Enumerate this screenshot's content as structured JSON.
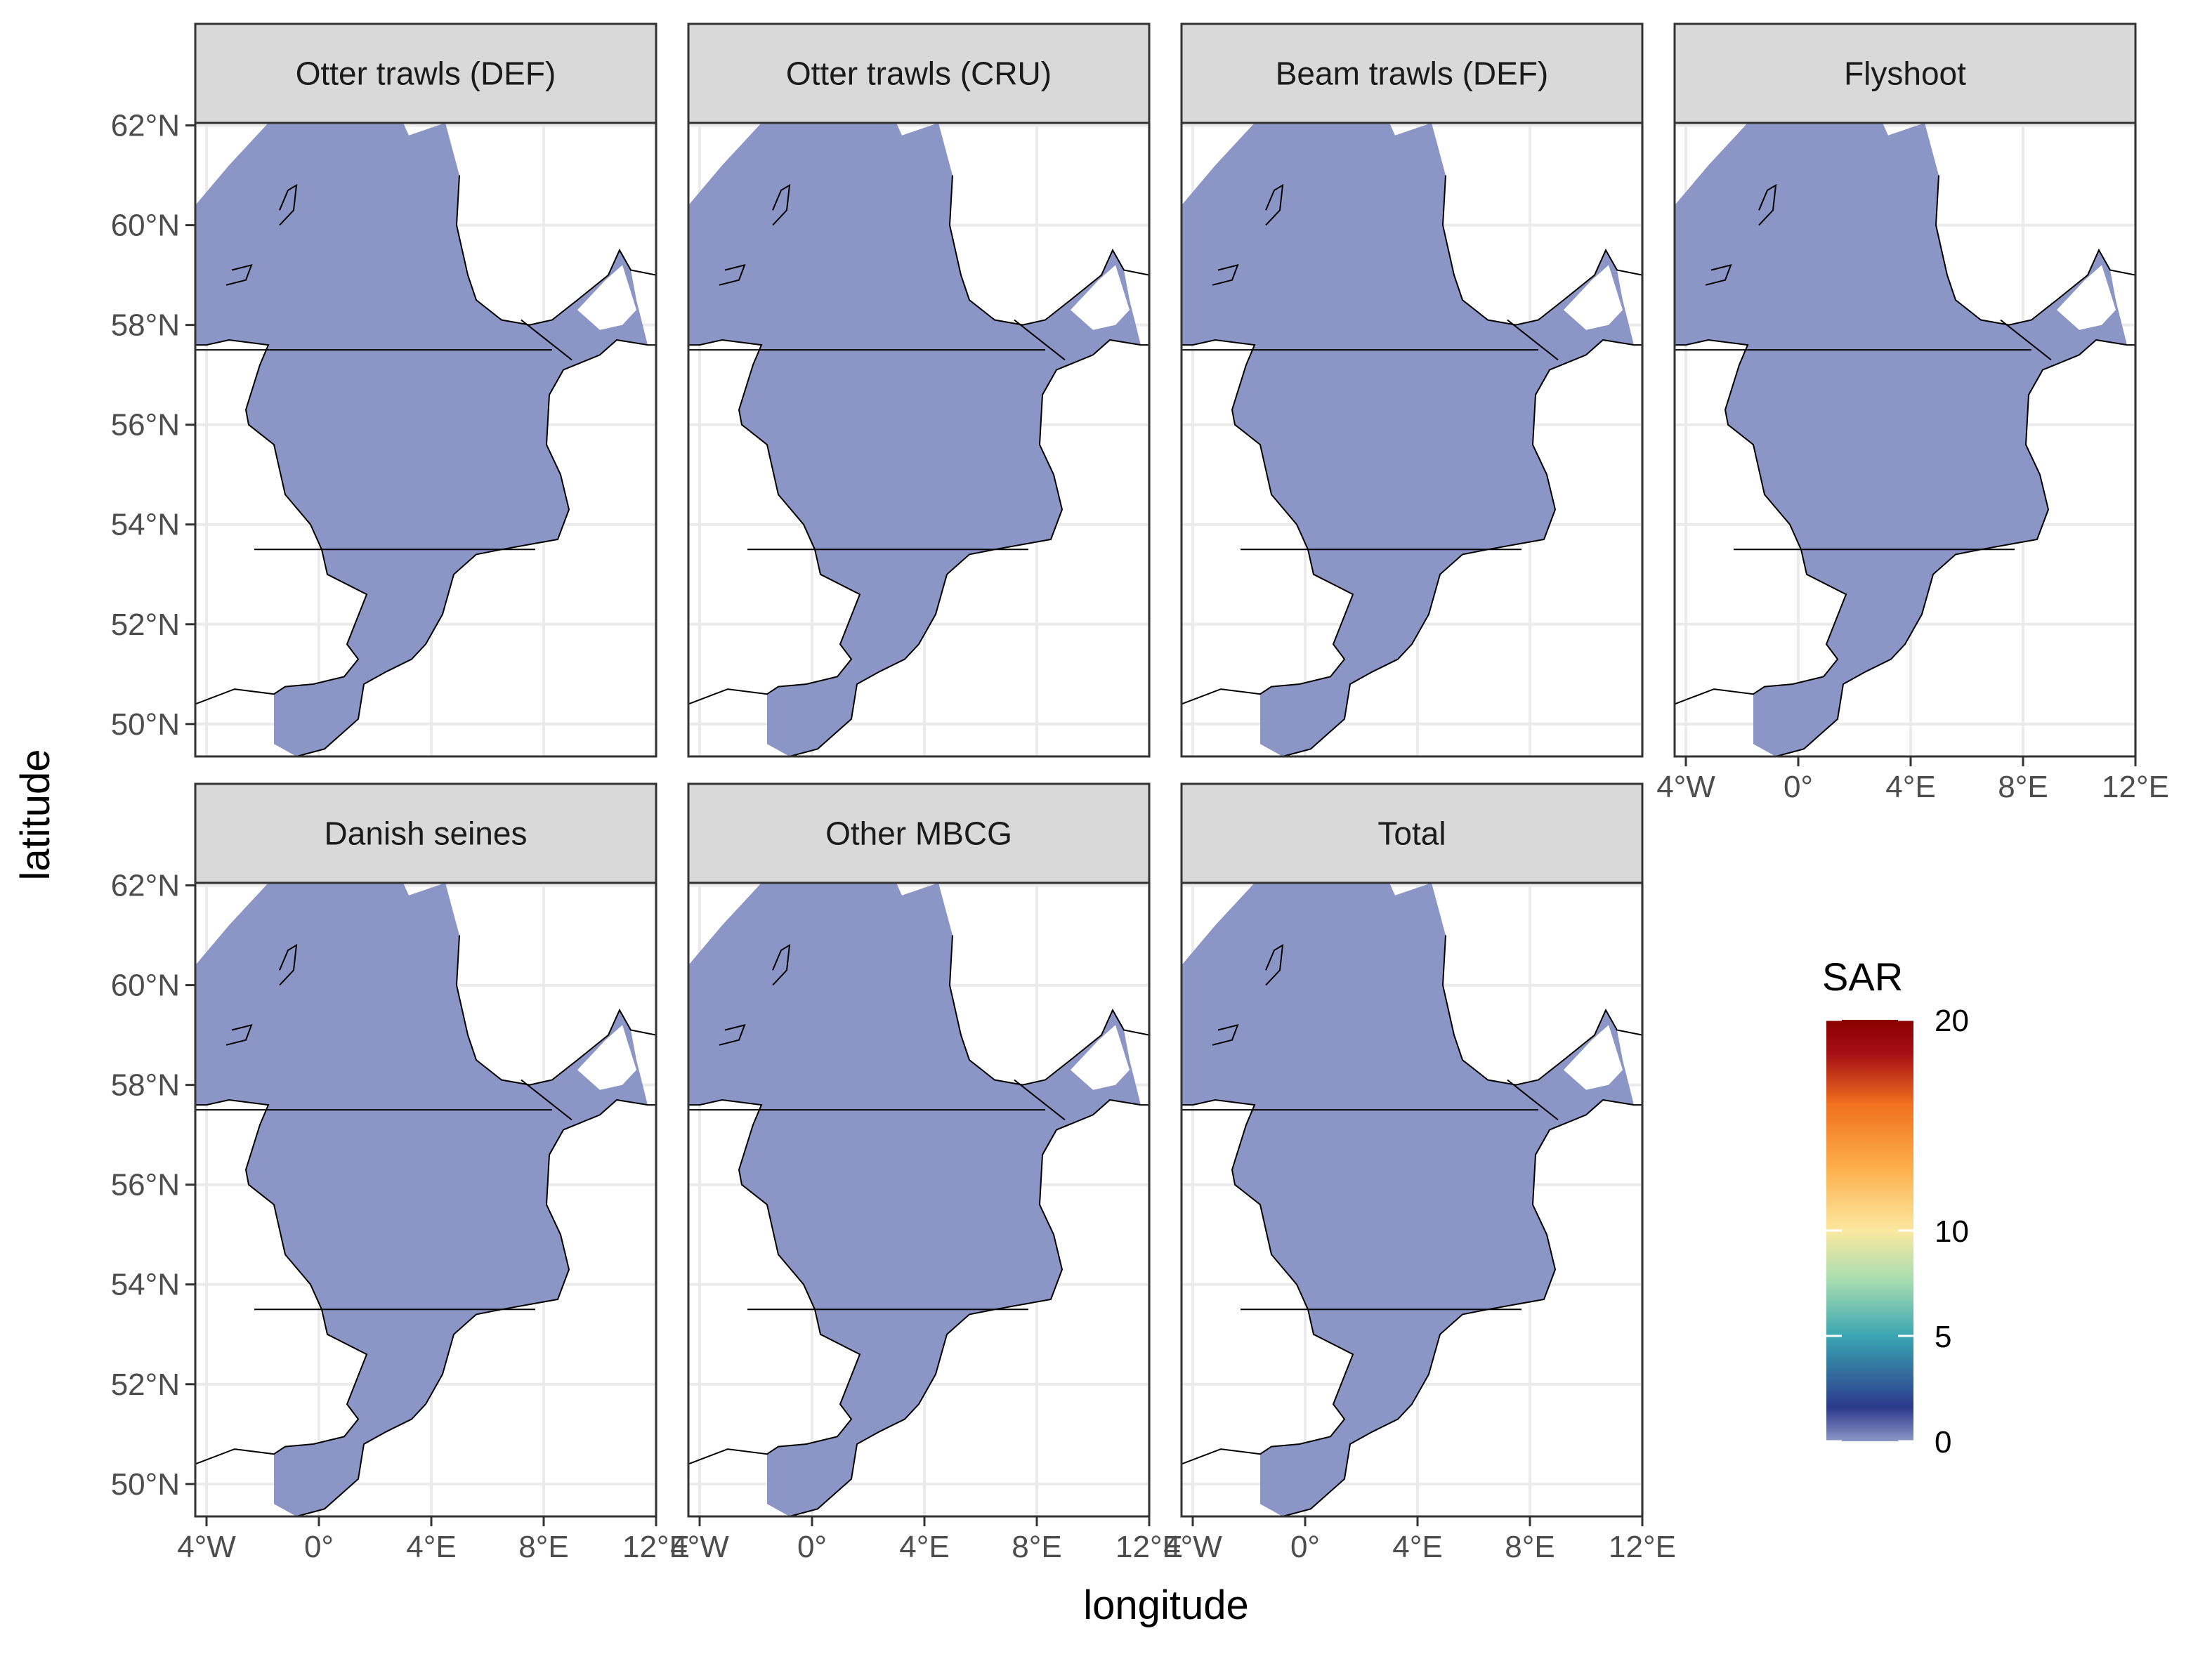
{
  "figure": {
    "panels": [
      {
        "title": "Otter trawls (DEF)"
      },
      {
        "title": "Otter trawls (CRU)"
      },
      {
        "title": "Beam trawls (DEF)"
      },
      {
        "title": "Flyshoot"
      },
      {
        "title": "Danish seines"
      },
      {
        "title": "Other MBCG"
      },
      {
        "title": "Total"
      }
    ],
    "xlabel": "longitude",
    "ylabel": "latitude",
    "lon_ticks": [
      {
        "value": -4,
        "label": "4°W"
      },
      {
        "value": 0,
        "label": "0°"
      },
      {
        "value": 4,
        "label": "4°E"
      },
      {
        "value": 8,
        "label": "8°E"
      },
      {
        "value": 12,
        "label": "12°E"
      }
    ],
    "lat_ticks": [
      {
        "value": 50,
        "label": "50°N"
      },
      {
        "value": 52,
        "label": "52°N"
      },
      {
        "value": 54,
        "label": "54°N"
      },
      {
        "value": 56,
        "label": "56°N"
      },
      {
        "value": 58,
        "label": "58°N"
      },
      {
        "value": 60,
        "label": "60°N"
      },
      {
        "value": 62,
        "label": "62°N"
      }
    ],
    "lon_range": [
      -4.4,
      12
    ],
    "lat_range": [
      49.35,
      62.05
    ],
    "legend": {
      "title": "SAR",
      "ticks": [
        {
          "value": 0,
          "label": "0"
        },
        {
          "value": 5,
          "label": "5"
        },
        {
          "value": 10,
          "label": "10"
        },
        {
          "value": 20,
          "label": "20"
        }
      ],
      "range": [
        0,
        20
      ],
      "colors": [
        "#8c96c6",
        "#2c3a8c",
        "#3aa6b2",
        "#a6dcb0",
        "#fbe8a0",
        "#fdae4b",
        "#f0701e",
        "#a50f15",
        "#8b0000"
      ]
    },
    "colors": {
      "sea": "#8c96c6",
      "land": "#ffffff",
      "coast": "#000000",
      "grid": "#ebebeb",
      "strip_bg": "#d9d9d9",
      "panel_border": "#333333"
    }
  }
}
